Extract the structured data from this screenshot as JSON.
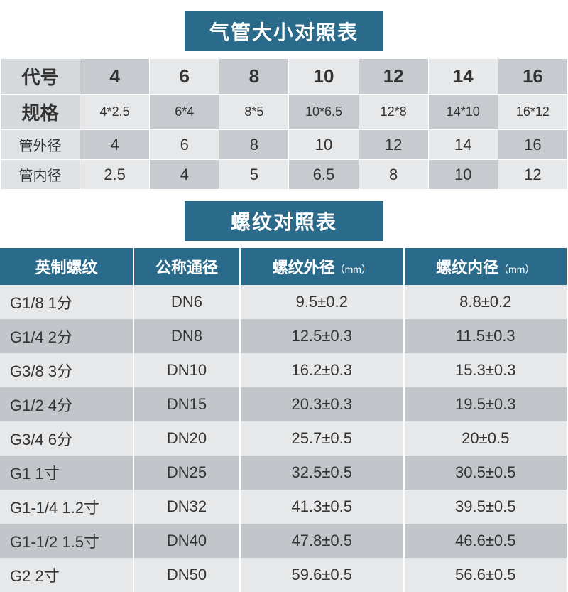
{
  "table1": {
    "title": "气管大小对照表",
    "rowLabels": [
      "代号",
      "规格",
      "管外径",
      "管内径"
    ],
    "columns": [
      "4",
      "6",
      "8",
      "10",
      "12",
      "14",
      "16"
    ],
    "spec": [
      "4*2.5",
      "6*4",
      "8*5",
      "10*6.5",
      "12*8",
      "14*10",
      "16*12"
    ],
    "outer": [
      "4",
      "6",
      "8",
      "10",
      "12",
      "14",
      "16"
    ],
    "inner": [
      "2.5",
      "4",
      "5",
      "6.5",
      "8",
      "10",
      "12"
    ]
  },
  "table2": {
    "title": "螺纹对照表",
    "headers": [
      "英制螺纹",
      "公称通径",
      "螺纹外径",
      "螺纹内径"
    ],
    "unit": "（mm）",
    "rows": [
      [
        "G1/8 1分",
        "DN6",
        "9.5±0.2",
        "8.8±0.2"
      ],
      [
        "G1/4 2分",
        "DN8",
        "12.5±0.3",
        "11.5±0.3"
      ],
      [
        "G3/8 3分",
        "DN10",
        "16.2±0.3",
        "15.3±0.3"
      ],
      [
        "G1/2 4分",
        "DN15",
        "20.3±0.3",
        "19.5±0.3"
      ],
      [
        "G3/4 6分",
        "DN20",
        "25.7±0.5",
        "20±0.5"
      ],
      [
        "G1 1寸",
        "DN25",
        "32.5±0.5",
        "30.5±0.5"
      ],
      [
        "G1-1/4 1.2寸",
        "DN32",
        "41.3±0.5",
        "39.5±0.5"
      ],
      [
        "G1-1/2 1.5寸",
        "DN40",
        "47.8±0.5",
        "46.6±0.5"
      ],
      [
        "G2 2寸",
        "DN50",
        "59.6±0.5",
        "56.6±0.5"
      ]
    ]
  },
  "colors": {
    "brand": "#2a6a8a",
    "greyA": "#c7cbcf",
    "greyB": "#e6e8ea"
  }
}
